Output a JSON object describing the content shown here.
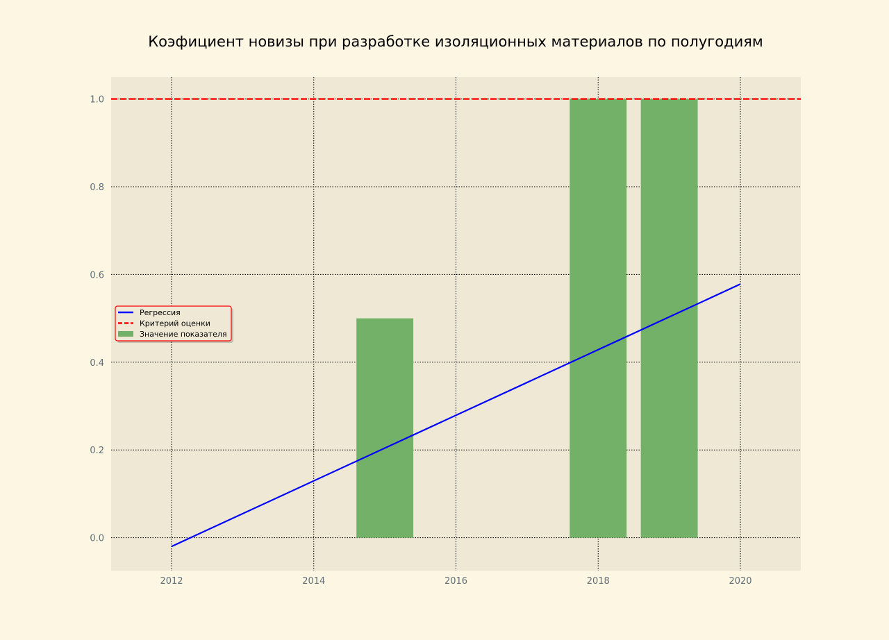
{
  "chart_data": {
    "type": "bar",
    "title": "Коэфициент новизы при разработке изоляционных материалов по полугодиям",
    "xlabel": "",
    "ylabel": "",
    "xlim": [
      2011.15,
      20.85
    ],
    "ylim": [
      -0.075,
      1.05
    ],
    "x_ticks": [
      2012,
      2014,
      2016,
      2018,
      2020
    ],
    "x_tick_labels": [
      "2012",
      "2014",
      "2016",
      "2018",
      "2020"
    ],
    "y_ticks": [
      0.0,
      0.2,
      0.4,
      0.6,
      0.8,
      1.0
    ],
    "y_tick_labels": [
      "0.0",
      "0.2",
      "0.4",
      "0.6",
      "0.8",
      "1.0"
    ],
    "grid": true,
    "legend_position": "center-left",
    "series": [
      {
        "name": "Регрессия",
        "kind": "line",
        "color": "#0000ff",
        "x": [
          2012,
          2020
        ],
        "y": [
          -0.02,
          0.578
        ]
      },
      {
        "name": "Критерий оценки",
        "kind": "hline",
        "color": "#ff0000",
        "style": "dashed",
        "y": 1.0
      },
      {
        "name": "Значение показателя",
        "kind": "bar",
        "color": "#73b168",
        "bar_width": 0.8,
        "x": [
          2015,
          2018,
          2019
        ],
        "y": [
          0.5,
          1.0,
          1.0
        ]
      }
    ]
  },
  "colors": {
    "figure_background": "#fdf6e3",
    "plot_background": "#eee8d5",
    "grid": "#000000",
    "tick_label": "#5f6f78",
    "legend_border": "#ff0000"
  }
}
